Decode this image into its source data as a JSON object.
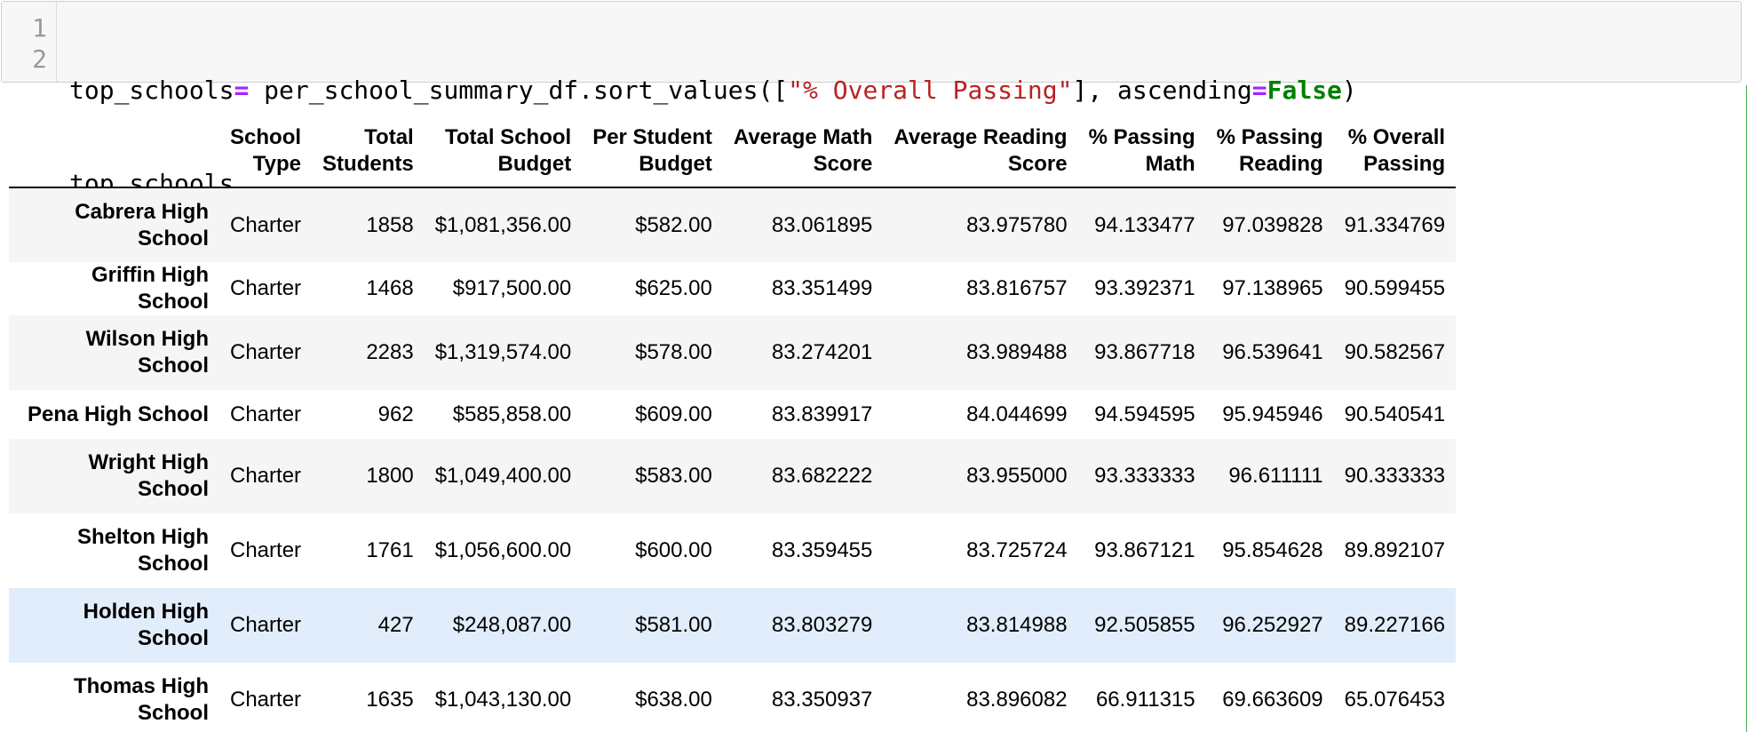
{
  "code_cell": {
    "line_numbers": [
      "1",
      "2"
    ],
    "line1": {
      "var": "top_schools",
      "assign": "=",
      "call": " per_school_summary_df.sort_values([",
      "string": "\"% Overall Passing\"",
      "mid": "], ascending",
      "eq": "=",
      "kw": "False",
      "close": ")"
    },
    "line2": "top_schools"
  },
  "table": {
    "columns": [
      "School\nType",
      "Total\nStudents",
      "Total School\nBudget",
      "Per Student\nBudget",
      "Average Math\nScore",
      "Average Reading\nScore",
      "% Passing\nMath",
      "% Passing\nReading",
      "% Overall\nPassing"
    ],
    "column_lines": [
      [
        "School",
        "Type"
      ],
      [
        "Total",
        "Students"
      ],
      [
        "Total School",
        "Budget"
      ],
      [
        "Per Student",
        "Budget"
      ],
      [
        "Average Math",
        "Score"
      ],
      [
        "Average Reading",
        "Score"
      ],
      [
        "% Passing",
        "Math"
      ],
      [
        "% Passing",
        "Reading"
      ],
      [
        "% Overall",
        "Passing"
      ]
    ],
    "rows": [
      {
        "index": [
          "Cabrera High",
          "School"
        ],
        "values": [
          "Charter",
          "1858",
          "$1,081,356.00",
          "$582.00",
          "83.061895",
          "83.975780",
          "94.133477",
          "97.039828",
          "91.334769"
        ]
      },
      {
        "index": [
          "Griffin High School"
        ],
        "values": [
          "Charter",
          "1468",
          "$917,500.00",
          "$625.00",
          "83.351499",
          "83.816757",
          "93.392371",
          "97.138965",
          "90.599455"
        ]
      },
      {
        "index": [
          "Wilson High",
          "School"
        ],
        "values": [
          "Charter",
          "2283",
          "$1,319,574.00",
          "$578.00",
          "83.274201",
          "83.989488",
          "93.867718",
          "96.539641",
          "90.582567"
        ]
      },
      {
        "index": [
          "Pena High School"
        ],
        "values": [
          "Charter",
          "962",
          "$585,858.00",
          "$609.00",
          "83.839917",
          "84.044699",
          "94.594595",
          "95.945946",
          "90.540541"
        ]
      },
      {
        "index": [
          "Wright High",
          "School"
        ],
        "values": [
          "Charter",
          "1800",
          "$1,049,400.00",
          "$583.00",
          "83.682222",
          "83.955000",
          "93.333333",
          "96.611111",
          "90.333333"
        ]
      },
      {
        "index": [
          "Shelton High",
          "School"
        ],
        "values": [
          "Charter",
          "1761",
          "$1,056,600.00",
          "$600.00",
          "83.359455",
          "83.725724",
          "93.867121",
          "95.854628",
          "89.892107"
        ]
      },
      {
        "index": [
          "Holden High",
          "School"
        ],
        "values": [
          "Charter",
          "427",
          "$248,087.00",
          "$581.00",
          "83.803279",
          "83.814988",
          "92.505855",
          "96.252927",
          "89.227166"
        ],
        "hovered": true
      },
      {
        "index": [
          "Thomas High",
          "School"
        ],
        "values": [
          "Charter",
          "1635",
          "$1,043,130.00",
          "$638.00",
          "83.350937",
          "83.896082",
          "66.911315",
          "69.663609",
          "65.076453"
        ]
      }
    ]
  },
  "colors": {
    "cell_bg": "#f7f7f7",
    "row_stripe": "#f5f5f5",
    "row_hover": "#e1edfa",
    "keyword": "#008000",
    "string": "#ba2121",
    "operator": "#aa22ff",
    "selected_cell_rule": "#4caf50"
  }
}
